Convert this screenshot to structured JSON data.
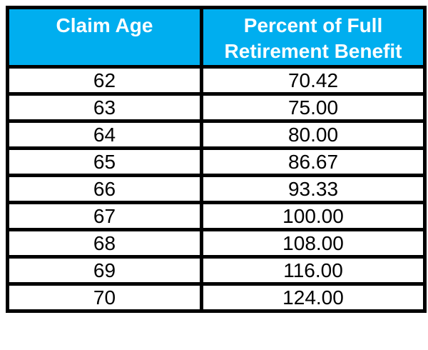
{
  "table": {
    "header": {
      "claim_age": "Claim Age",
      "percent_line1": "Percent of Full",
      "percent_line2": "Retirement Benefit"
    },
    "rows": [
      {
        "age": "62",
        "percent": "70.42"
      },
      {
        "age": "63",
        "percent": "75.00"
      },
      {
        "age": "64",
        "percent": "80.00"
      },
      {
        "age": "65",
        "percent": "86.67"
      },
      {
        "age": "66",
        "percent": "93.33"
      },
      {
        "age": "67",
        "percent": "100.00"
      },
      {
        "age": "68",
        "percent": "108.00"
      },
      {
        "age": "69",
        "percent": "116.00"
      },
      {
        "age": "70",
        "percent": "124.00"
      }
    ]
  },
  "colors": {
    "header_background": "#00AEEF",
    "header_text": "#FFFFFF",
    "border": "#000000",
    "body_text": "#000000",
    "page_background": "#FFFFFF"
  },
  "chart_data": {
    "type": "table",
    "title": "",
    "columns": [
      "Claim Age",
      "Percent of Full Retirement Benefit"
    ],
    "rows": [
      [
        62,
        70.42
      ],
      [
        63,
        75.0
      ],
      [
        64,
        80.0
      ],
      [
        65,
        86.67
      ],
      [
        66,
        93.33
      ],
      [
        67,
        100.0
      ],
      [
        68,
        108.0
      ],
      [
        69,
        116.0
      ],
      [
        70,
        124.0
      ]
    ]
  }
}
